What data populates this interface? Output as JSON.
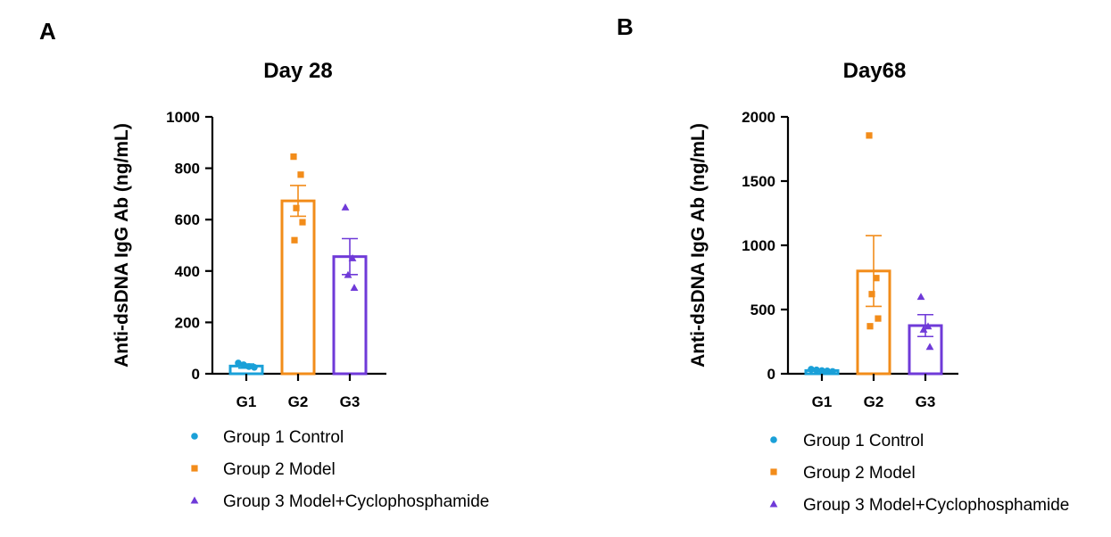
{
  "panels": [
    "A",
    "B"
  ],
  "groups": [
    {
      "name": "Group 1 Control",
      "color": "#1aa0d8",
      "marker": "circle"
    },
    {
      "name": "Group 2 Model",
      "color": "#f28c1a",
      "marker": "square"
    },
    {
      "name": "Group 3 Model+Cyclophosphamide",
      "color": "#6f3ad8",
      "marker": "triangle"
    }
  ],
  "chart_data": [
    {
      "type": "bar",
      "panel": "A",
      "title": "Day 28",
      "xlabel": "",
      "ylabel": "Anti-dsDNA IgG Ab (ng/mL)",
      "categories": [
        "G1",
        "G2",
        "G3"
      ],
      "ylim": [
        0,
        1000
      ],
      "yticks": [
        0,
        200,
        400,
        600,
        800,
        1000
      ],
      "series": [
        {
          "category": "G1",
          "mean": 30,
          "sem": 8,
          "points": [
            42,
            35,
            28,
            25
          ]
        },
        {
          "category": "G2",
          "mean": 673,
          "sem": 60,
          "points": [
            845,
            775,
            645,
            590,
            520
          ]
        },
        {
          "category": "G3",
          "mean": 456,
          "sem": 70,
          "points": [
            648,
            450,
            385,
            335
          ]
        }
      ],
      "legend": "bottom",
      "grid": false
    },
    {
      "type": "bar",
      "panel": "B",
      "title": "Day68",
      "xlabel": "",
      "ylabel": "Anti-dsDNA IgG Ab (ng/mL)",
      "categories": [
        "G1",
        "G2",
        "G3"
      ],
      "ylim": [
        0,
        2000
      ],
      "yticks": [
        0,
        500,
        1000,
        1500,
        2000
      ],
      "series": [
        {
          "category": "G1",
          "mean": 25,
          "sem": 5,
          "points": [
            35,
            30,
            25,
            22,
            18
          ]
        },
        {
          "category": "G2",
          "mean": 800,
          "sem": 275,
          "points": [
            1855,
            745,
            620,
            430,
            370
          ]
        },
        {
          "category": "G3",
          "mean": 375,
          "sem": 85,
          "points": [
            600,
            370,
            345,
            210
          ]
        }
      ],
      "legend": "bottom",
      "grid": false
    }
  ]
}
